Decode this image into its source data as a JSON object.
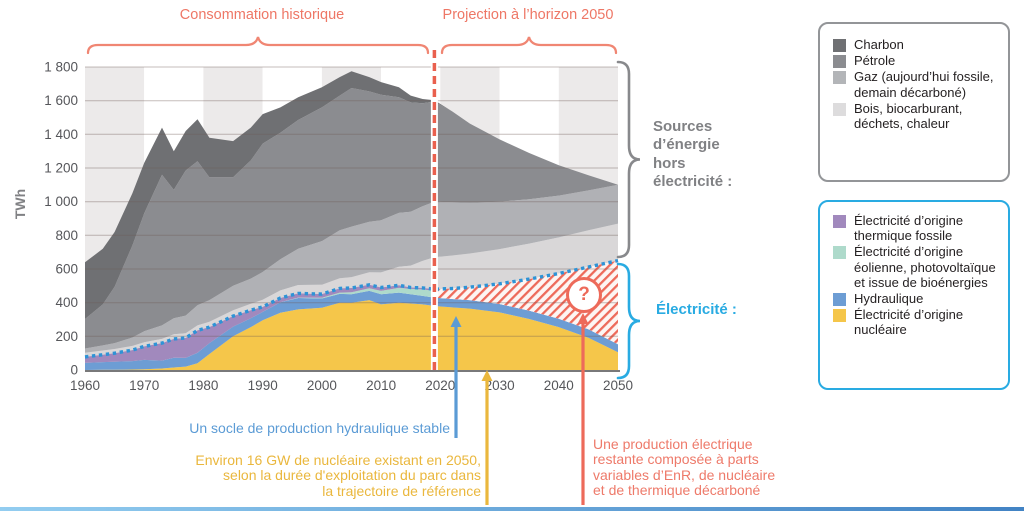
{
  "titles": {
    "history": "Consommation historique",
    "projection": "Projection à l’horizon 2050"
  },
  "side_labels": {
    "non_electric": "Sources\nd’énergie\nhors\nélectricité :",
    "electricity": "Électricité :"
  },
  "annotations": {
    "hydro": {
      "text": "Un socle de production hydraulique stable",
      "color": "#5b9bd5"
    },
    "nuclear": {
      "text": "Environ 16 GW de nucléaire existant en 2050,\nselon la durée d'exploitation du parc dans\nla trajectoire de référence",
      "color": "#eab73d"
    },
    "remaining": {
      "text": "Une production électrique\nrestante composée à parts\nvariables d’EnR, de nucléaire\net de thermique décarboné",
      "color": "#ee7a6a"
    },
    "question_mark": "?"
  },
  "legend_fossil": {
    "border_color": "#939598",
    "items": [
      {
        "label": "Charbon",
        "color": "#6f7073"
      },
      {
        "label": "Pétrole",
        "color": "#8b8c90"
      },
      {
        "label": "Gaz (aujourd’hui fossile, demain décarboné)",
        "color": "#b3b5b8"
      },
      {
        "label": "Bois, biocarburant, déchets, chaleur",
        "color": "#dddcdd"
      }
    ]
  },
  "legend_electricity": {
    "border_color": "#29abe2",
    "items": [
      {
        "label": "Électricité d’origine thermique fossile",
        "color": "#a189bd"
      },
      {
        "label": "Électricité d’origine éolienne, photovoltaïque et issue de bioénergies",
        "color": "#aedacb"
      },
      {
        "label": "Hydraulique",
        "color": "#6d9dd4"
      },
      {
        "label": "Électricité d’origine nucléaire",
        "color": "#f5c64a"
      }
    ]
  },
  "chart_data": {
    "type": "area",
    "title": "Consommation historique et projection à l’horizon 2050",
    "ylabel": "TWh",
    "xlim": [
      1960,
      2050
    ],
    "ylim": [
      0,
      1800
    ],
    "x_ticks": [
      "1960",
      "1970",
      "1980",
      "1990",
      "2000",
      "2010",
      "2020",
      "2030",
      "2040",
      "2050"
    ],
    "y_ticks": [
      "0",
      "200",
      "400",
      "600",
      "800",
      "1 000",
      "1 200",
      "1 400",
      "1 600",
      "1 800"
    ],
    "grid": true,
    "projection_start": 2019,
    "projection_divider_color": "#e9604e",
    "electricity_line_color": "#2e93d6",
    "historical": {
      "years": [
        1960,
        1963,
        1965,
        1968,
        1970,
        1973,
        1975,
        1977,
        1979,
        1981,
        1985,
        1988,
        1990,
        1993,
        1996,
        2000,
        2003,
        2005,
        2008,
        2010,
        2013,
        2015,
        2017,
        2019
      ],
      "series": [
        {
          "name": "Électricité d’origine nucléaire",
          "key": "nucleaire",
          "color": "#f5c64a",
          "values": [
            0,
            1,
            1,
            3,
            5,
            9,
            15,
            20,
            40,
            95,
            200,
            255,
            295,
            340,
            360,
            370,
            400,
            400,
            415,
            390,
            400,
            395,
            390,
            380
          ]
        },
        {
          "name": "Hydraulique",
          "key": "hydraulique",
          "color": "#6d9dd4",
          "values": [
            42,
            46,
            48,
            50,
            55,
            47,
            58,
            52,
            62,
            65,
            58,
            52,
            50,
            62,
            68,
            55,
            52,
            50,
            55,
            60,
            60,
            55,
            50,
            50
          ]
        },
        {
          "name": "Électricité d’origine éolienne, photovoltaïque et issue de bioénergies",
          "key": "eolien_pv_bio",
          "color": "#aedacb",
          "values": [
            0,
            0,
            0,
            0,
            0,
            0,
            0,
            0,
            0,
            0,
            0,
            0,
            0,
            1,
            2,
            4,
            8,
            12,
            16,
            20,
            28,
            32,
            38,
            40
          ]
        },
        {
          "name": "Électricité d’origine thermique fossile",
          "key": "thermique_fossile",
          "color": "#a189bd",
          "values": [
            36,
            44,
            51,
            65,
            80,
            104,
            112,
            118,
            133,
            95,
            62,
            48,
            30,
            25,
            25,
            22,
            25,
            25,
            20,
            20,
            15,
            8,
            10,
            10
          ]
        },
        {
          "name": "Bois, biocarburant, déchets, chaleur",
          "key": "bois",
          "color": "#d9d7d8",
          "values": [
            25,
            25,
            25,
            25,
            25,
            25,
            27,
            28,
            30,
            32,
            35,
            38,
            42,
            45,
            50,
            55,
            60,
            65,
            75,
            90,
            110,
            130,
            160,
            190
          ]
        },
        {
          "name": "Gaz (aujourd’hui fossile, demain décarboné)",
          "key": "gaz",
          "color": "#b0b1b5",
          "values": [
            25,
            30,
            35,
            50,
            65,
            80,
            95,
            105,
            120,
            128,
            145,
            150,
            165,
            185,
            215,
            260,
            285,
            300,
            300,
            310,
            320,
            320,
            325,
            330
          ]
        },
        {
          "name": "Pétrole",
          "key": "petrole",
          "color": "#8b8c90",
          "values": [
            175,
            244,
            335,
            547,
            700,
            895,
            763,
            862,
            855,
            730,
            645,
            702,
            763,
            752,
            765,
            794,
            800,
            823,
            774,
            745,
            687,
            650,
            612,
            595
          ]
        },
        {
          "name": "Charbon",
          "key": "charbon",
          "color": "#6f7073",
          "values": [
            337,
            330,
            325,
            310,
            300,
            280,
            230,
            235,
            250,
            235,
            215,
            195,
            175,
            150,
            135,
            120,
            110,
            100,
            85,
            75,
            60,
            40,
            25,
            8
          ]
        }
      ]
    },
    "projection": {
      "years": [
        2019,
        2022,
        2025,
        2030,
        2035,
        2040,
        2045,
        2050
      ],
      "series": [
        {
          "name": "Électricité d’origine nucléaire",
          "key": "nucleaire",
          "color": "#f5c64a",
          "values": [
            380,
            372,
            365,
            342,
            303,
            255,
            192,
            105
          ]
        },
        {
          "name": "Hydraulique",
          "key": "hydraulique",
          "color": "#6d9dd4",
          "values": [
            50,
            50,
            50,
            50,
            50,
            50,
            50,
            48
          ]
        },
        {
          "name": "Production électrique restante (EnR, nucléaire, thermique décarboné)",
          "key": "production_restante",
          "hatch": true,
          "color": "#ed6a5a",
          "values": [
            50,
            62,
            77,
            120,
            187,
            268,
            370,
            497
          ]
        },
        {
          "name": "Bois, biocarburant, déchets, chaleur",
          "key": "bois",
          "color": "#d9d7d8",
          "values": [
            190,
            196,
            200,
            206,
            211,
            215,
            218,
            220
          ]
        },
        {
          "name": "Gaz (aujourd’hui fossile, demain décarboné)",
          "key": "gaz",
          "color": "#b0b1b5",
          "values": [
            330,
            316,
            302,
            282,
            263,
            248,
            237,
            230
          ]
        },
        {
          "name": "Pétrole",
          "key": "petrole",
          "color": "#8b8c90",
          "values": [
            595,
            540,
            470,
            370,
            275,
            180,
            90,
            0
          ]
        }
      ]
    }
  },
  "colors": {
    "coral_accent": "#ed6a5a",
    "coral_text": "#ee7766",
    "gray_brace": "#88898c",
    "blue_brace": "#29abe2",
    "axis_text": "#55565a",
    "stripe": "#eceaea"
  }
}
